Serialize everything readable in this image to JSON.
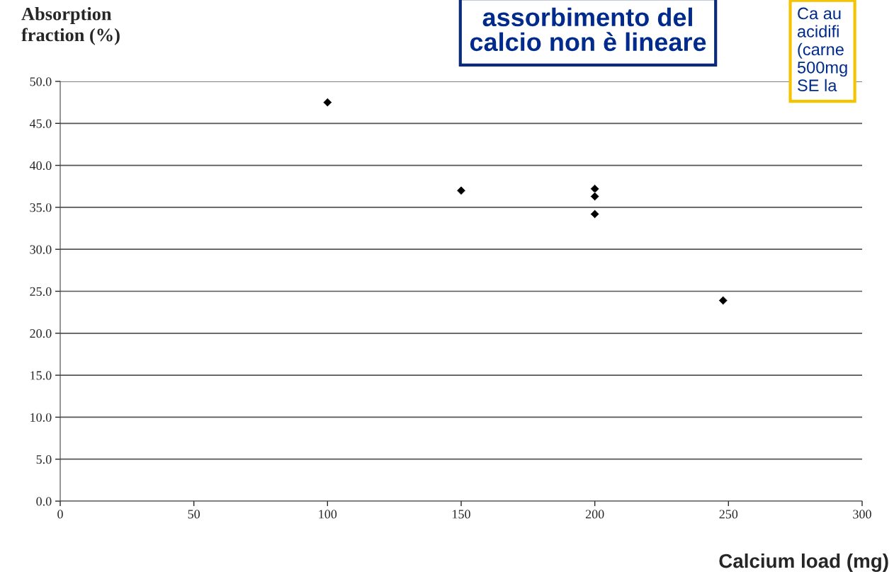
{
  "chart_data": {
    "type": "scatter",
    "xlabel": "Calcium load (mg)",
    "ylabel": "Absorption\nfraction (%)",
    "x": [
      100,
      150,
      200,
      200,
      200,
      248
    ],
    "values": [
      47.5,
      37.0,
      37.2,
      36.3,
      34.2,
      23.9
    ],
    "color": "#000000",
    "marker": "diamond",
    "grid": "y",
    "xlim": [
      0,
      300
    ],
    "xticks": [
      0,
      50,
      100,
      150,
      200,
      250,
      300
    ],
    "ylim": [
      0,
      50
    ],
    "yticks": [
      {
        "value": 0,
        "label": "0.0"
      },
      {
        "value": 5,
        "label": "5.0"
      },
      {
        "value": 10,
        "label": "10.0"
      },
      {
        "value": 15,
        "label": "15.0"
      },
      {
        "value": 20,
        "label": "20.0"
      },
      {
        "value": 25,
        "label": "25.0"
      },
      {
        "value": 30,
        "label": "30.0"
      },
      {
        "value": 35,
        "label": "35.0"
      },
      {
        "value": 40,
        "label": "40.0"
      },
      {
        "value": 45,
        "label": "45.0"
      },
      {
        "value": 50,
        "label": "50.0"
      }
    ],
    "annotations": [
      "assorbimento del\ncalcio non è lineare",
      "Ca au\nacidifi\n(carne\n500mg\nSE la"
    ]
  }
}
